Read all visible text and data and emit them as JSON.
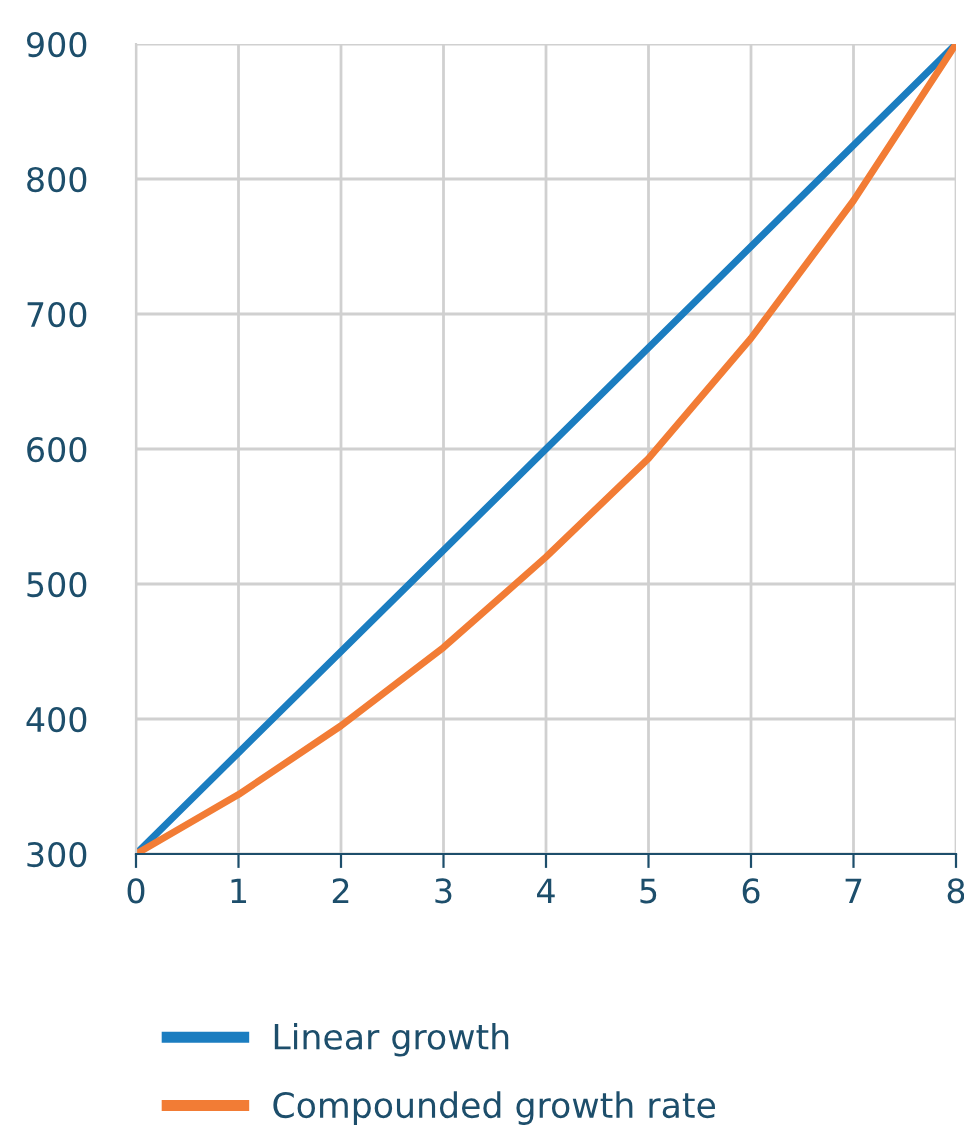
{
  "chart_data": {
    "type": "line",
    "x": [
      0,
      1,
      2,
      3,
      4,
      5,
      6,
      7,
      8
    ],
    "series": [
      {
        "name": "Linear growth",
        "color": "#1b7dc0",
        "values": [
          300,
          375,
          450,
          525,
          600,
          675,
          750,
          825,
          900
        ]
      },
      {
        "name": "Compounded growth rate",
        "color": "#f27c35",
        "values": [
          300,
          344,
          395,
          453,
          520,
          593,
          682,
          784,
          900
        ]
      }
    ],
    "xlim": [
      0,
      8
    ],
    "xticks": [
      0,
      1,
      2,
      3,
      4,
      5,
      6,
      7,
      8
    ],
    "ylim": [
      300,
      900
    ],
    "yticks": [
      300,
      400,
      500,
      600,
      700,
      800,
      900
    ],
    "grid": true,
    "legend": "bottom",
    "marker": "none",
    "line_style": "solid"
  }
}
